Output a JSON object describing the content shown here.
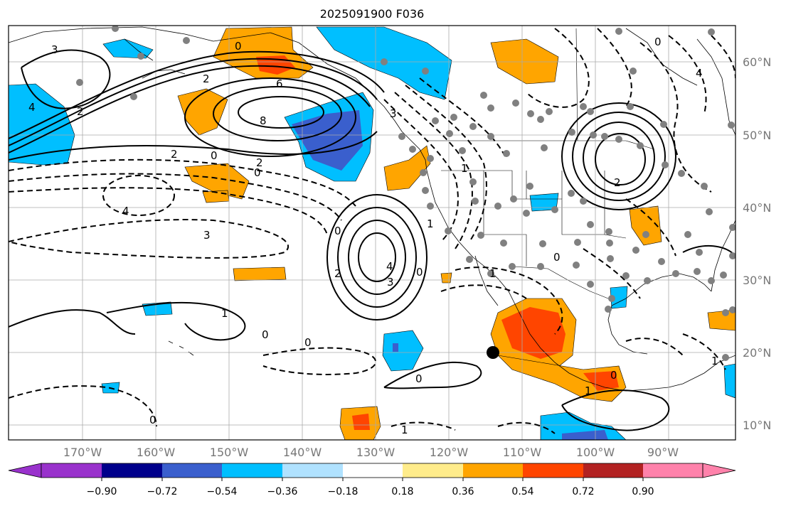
{
  "title": "2025091900 F036",
  "lat_labels": [
    {
      "value": 60,
      "text": "60°N"
    },
    {
      "value": 50,
      "text": "50°N"
    },
    {
      "value": 40,
      "text": "40°N"
    },
    {
      "value": 30,
      "text": "30°N"
    },
    {
      "value": 20,
      "text": "20°N"
    },
    {
      "value": 10,
      "text": "10°N"
    }
  ],
  "lon_labels": [
    {
      "value": -170,
      "text": "170°W"
    },
    {
      "value": -160,
      "text": "160°W"
    },
    {
      "value": -150,
      "text": "150°W"
    },
    {
      "value": -140,
      "text": "140°W"
    },
    {
      "value": -130,
      "text": "130°W"
    },
    {
      "value": -120,
      "text": "120°W"
    },
    {
      "value": -110,
      "text": "110°W"
    },
    {
      "value": -100,
      "text": "100°W"
    },
    {
      "value": -90,
      "text": "90°W"
    }
  ],
  "colorbar": {
    "colors": [
      "#9932cc",
      "#00008b",
      "#3a5fcd",
      "#00bfff",
      "#b0e2ff",
      "#ffffff",
      "#ffec8b",
      "#ffa500",
      "#ff4500",
      "#b22222",
      "#ff82ab"
    ],
    "tick_labels": [
      "−0.90",
      "−0.72",
      "−0.54",
      "−0.36",
      "−0.18",
      "0.18",
      "0.36",
      "0.54",
      "0.72",
      "0.90"
    ]
  },
  "contour_labels": [
    "3",
    "4",
    "2",
    "6",
    "8",
    "2",
    "0",
    "0",
    "2",
    "4",
    "3",
    "0",
    "2",
    "3",
    "4",
    "1",
    "0",
    "0",
    "0",
    "1",
    "2",
    "0",
    "1",
    "0",
    "1",
    "0",
    "0",
    "1",
    "2",
    "1",
    "3",
    "4",
    "0",
    "0",
    "1"
  ]
}
